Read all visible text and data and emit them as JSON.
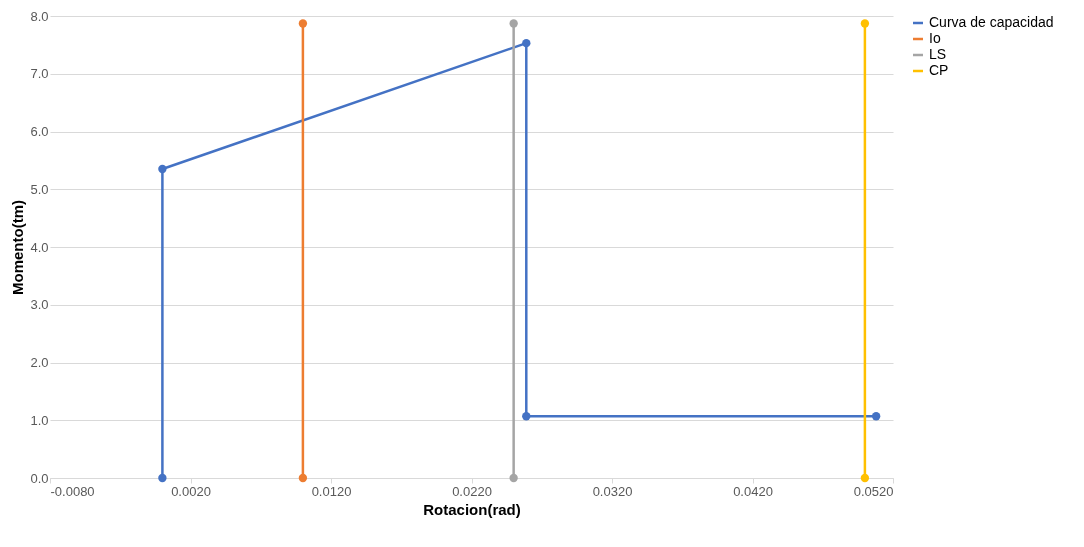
{
  "chart_data": {
    "type": "line",
    "xlabel": "Rotacion(rad)",
    "ylabel": "Momento(tm)",
    "marker": "circle",
    "grid": "y",
    "legend": "right",
    "xlim": [
      -0.008,
      0.052
    ],
    "xticks": [
      {
        "value": -0.008,
        "label": "-0.0080"
      },
      {
        "value": 0.002,
        "label": "0.0020"
      },
      {
        "value": 0.012,
        "label": "0.0120"
      },
      {
        "value": 0.022,
        "label": "0.0220"
      },
      {
        "value": 0.032,
        "label": "0.0320"
      },
      {
        "value": 0.042,
        "label": "0.0420"
      },
      {
        "value": 0.052,
        "label": "0.0520"
      }
    ],
    "ylim": [
      0,
      8
    ],
    "yticks": [
      {
        "value": 0,
        "label": "0.0"
      },
      {
        "value": 1,
        "label": "1.0"
      },
      {
        "value": 2,
        "label": "2.0"
      },
      {
        "value": 3,
        "label": "3.0"
      },
      {
        "value": 4,
        "label": "4.0"
      },
      {
        "value": 5,
        "label": "5.0"
      },
      {
        "value": 6,
        "label": "6.0"
      },
      {
        "value": 7,
        "label": "7.0"
      },
      {
        "value": 8,
        "label": "8.0"
      }
    ],
    "series": [
      {
        "name": "Curva de capacidad",
        "color": "#4472c4",
        "x": [
          0,
          0,
          0.0259,
          0.0259,
          0.0508
        ],
        "values": [
          0,
          5.35,
          7.53,
          1.07,
          1.07
        ]
      },
      {
        "name": "Io",
        "color": "#ed7d31",
        "x": [
          0.01,
          0.01
        ],
        "values": [
          0,
          7.87
        ]
      },
      {
        "name": "LS",
        "color": "#a5a5a5",
        "x": [
          0.025,
          0.025
        ],
        "values": [
          0,
          7.87
        ]
      },
      {
        "name": "CP",
        "color": "#ffc000",
        "x": [
          0.05,
          0.05
        ],
        "values": [
          0,
          7.87
        ]
      }
    ]
  }
}
